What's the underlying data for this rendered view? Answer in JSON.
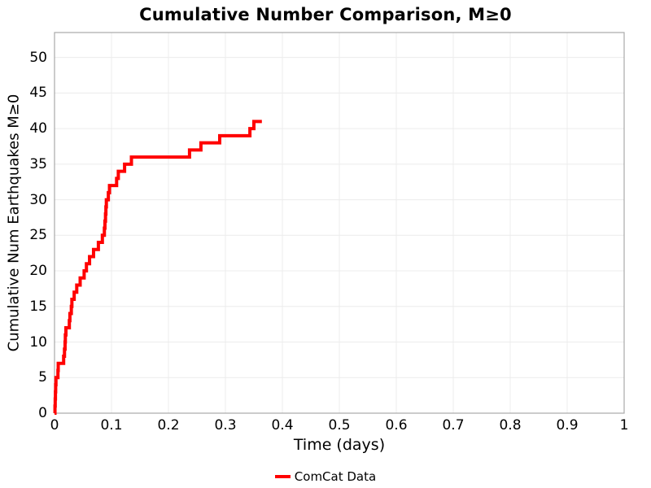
{
  "title": "Cumulative Number Comparison, M≥0",
  "colors": {
    "line": "#ff0000",
    "grid": "#ececec",
    "panel_border": "#a9a9a9",
    "text": "#000000",
    "background": "#ffffff"
  },
  "chart_data": {
    "type": "line",
    "subtype": "step-post-cumulative",
    "title": "Cumulative Number Comparison, M≥0",
    "xlabel": "Time (days)",
    "ylabel": "Cumulative Num Earthquakes M≥0",
    "xlim": [
      0,
      1
    ],
    "ylim": [
      0,
      53.5
    ],
    "grid": true,
    "xticks": [
      0,
      0.1,
      0.2,
      0.3,
      0.4,
      0.5,
      0.6,
      0.7,
      0.8,
      0.9,
      1
    ],
    "xtick_labels": [
      "0",
      "0.1",
      "0.2",
      "0.3",
      "0.4",
      "0.5",
      "0.6",
      "0.7",
      "0.8",
      "0.9",
      "1"
    ],
    "yticks": [
      0,
      5,
      10,
      15,
      20,
      25,
      30,
      35,
      40,
      45,
      50
    ],
    "ytick_labels": [
      "0",
      "5",
      "10",
      "15",
      "20",
      "25",
      "30",
      "35",
      "40",
      "45",
      "50"
    ],
    "legend": {
      "position": "bottom-center",
      "entries": [
        {
          "label": "ComCat Data",
          "color": "#ff0000"
        }
      ]
    },
    "series": [
      {
        "name": "ComCat Data",
        "color": "#ff0000",
        "line_width": 4,
        "step_mode": "post",
        "start": [
          0,
          0
        ],
        "end_time": 0.364,
        "points": [
          [
            0.0008,
            1
          ],
          [
            0.0012,
            2
          ],
          [
            0.0016,
            3
          ],
          [
            0.002,
            4
          ],
          [
            0.0025,
            5
          ],
          [
            0.006,
            6
          ],
          [
            0.0065,
            7
          ],
          [
            0.016,
            8
          ],
          [
            0.0175,
            9
          ],
          [
            0.0185,
            10
          ],
          [
            0.019,
            11
          ],
          [
            0.02,
            12
          ],
          [
            0.026,
            13
          ],
          [
            0.027,
            14
          ],
          [
            0.0295,
            15
          ],
          [
            0.0305,
            16
          ],
          [
            0.0345,
            17
          ],
          [
            0.039,
            18
          ],
          [
            0.045,
            19
          ],
          [
            0.052,
            20
          ],
          [
            0.056,
            21
          ],
          [
            0.0615,
            22
          ],
          [
            0.0685,
            23
          ],
          [
            0.077,
            24
          ],
          [
            0.084,
            25
          ],
          [
            0.0875,
            26
          ],
          [
            0.0885,
            27
          ],
          [
            0.0895,
            28
          ],
          [
            0.0902,
            29
          ],
          [
            0.091,
            30
          ],
          [
            0.0945,
            31
          ],
          [
            0.0965,
            32
          ],
          [
            0.109,
            33
          ],
          [
            0.112,
            34
          ],
          [
            0.123,
            35
          ],
          [
            0.135,
            36
          ],
          [
            0.237,
            37
          ],
          [
            0.257,
            38
          ],
          [
            0.29,
            39
          ],
          [
            0.343,
            40
          ],
          [
            0.35,
            41
          ]
        ]
      }
    ]
  }
}
